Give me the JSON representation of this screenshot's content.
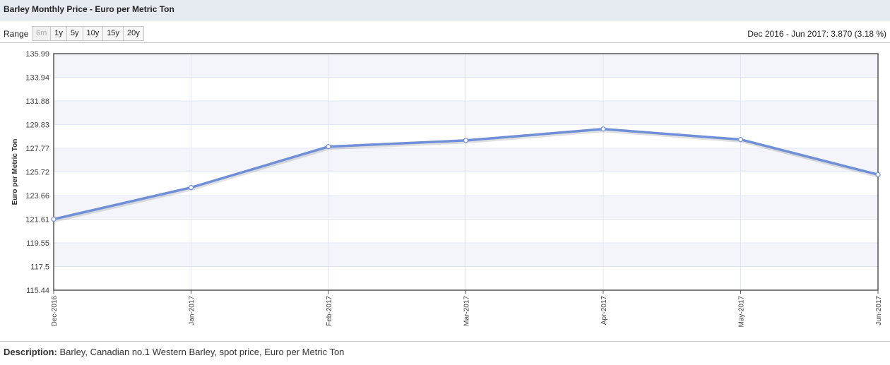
{
  "header": {
    "title": "Barley Monthly Price - Euro per Metric Ton"
  },
  "range": {
    "label": "Range",
    "buttons": [
      "6m",
      "1y",
      "5y",
      "10y",
      "15y",
      "20y"
    ],
    "disabled": "6m",
    "change_text": "Dec 2016 - Jun 2017: 3.870 (3.18 %)"
  },
  "description": {
    "label": "Description:",
    "text": " Barley, Canadian no.1 Western Barley, spot price, Euro per Metric Ton"
  },
  "colors": {
    "line": "#6f8fd8",
    "band": "#f4f5fa",
    "grid": "#dfe6f2",
    "frame": "#555555"
  },
  "chart_data": {
    "type": "line",
    "title": "",
    "xlabel": "",
    "ylabel": "Euro per Metric Ton",
    "categories": [
      "Dec-2016",
      "Jan-2017",
      "Feb-2017",
      "Mar-2017",
      "Apr-2017",
      "May-2017",
      "Jun-2017"
    ],
    "series": [
      {
        "values": [
          121.61,
          124.36,
          127.91,
          128.45,
          129.44,
          128.53,
          125.48
        ]
      }
    ],
    "yticks": [
      "135.99",
      "133.94",
      "131.88",
      "129.83",
      "127.77",
      "125.72",
      "123.66",
      "121.61",
      "119.55",
      "117.5",
      "115.44"
    ],
    "ylim": [
      115.44,
      135.99
    ],
    "grid": true,
    "legend": "none"
  }
}
